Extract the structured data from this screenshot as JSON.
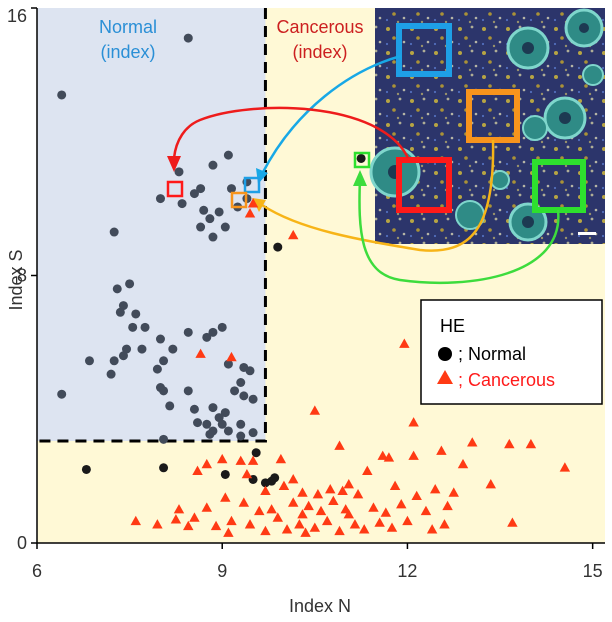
{
  "chart_data": {
    "type": "scatter",
    "xlabel": "Index N",
    "ylabel": "Index S",
    "xlim": [
      6,
      15.2
    ],
    "ylim": [
      0,
      16
    ],
    "xticks": [
      6,
      9,
      12,
      15
    ],
    "yticks": [
      0,
      8,
      16
    ],
    "region_labels": {
      "normal": [
        "Normal",
        "(index)"
      ],
      "cancerous": [
        "Cancerous",
        "(index)"
      ]
    },
    "thresholds": {
      "index_n": 9.7,
      "index_s": 3.05
    },
    "legend": {
      "title": "HE",
      "normal_label": "; Normal",
      "cancerous_label": "; Cancerous"
    },
    "colors": {
      "normal_region": "#dde4f1",
      "cancerous_region": "#fff9d6",
      "normal_point": "#3c3c3c",
      "cancerous_point": "#ff3a14",
      "normal_text": "#2a8fd6",
      "cancerous_text": "#cc2020",
      "box_red": "#ff1a1a",
      "box_blue": "#1e9fe6",
      "box_orange": "#f7941d",
      "box_green": "#2ee02e",
      "arrow_red": "#ee1c1c",
      "arrow_blue": "#18a8e6",
      "arrow_orange": "#f7b417",
      "arrow_green": "#3ddc3d"
    },
    "series": [
      {
        "name": "Normal",
        "marker": "circle",
        "points": [
          [
            8.45,
            15.1
          ],
          [
            6.4,
            13.4
          ],
          [
            9.1,
            11.6
          ],
          [
            8.85,
            11.3
          ],
          [
            8.3,
            11.1
          ],
          [
            9.4,
            10.8
          ],
          [
            8.65,
            10.6
          ],
          [
            9.15,
            10.6
          ],
          [
            8.55,
            10.45
          ],
          [
            8.0,
            10.3
          ],
          [
            8.35,
            10.15
          ],
          [
            9.25,
            10.05
          ],
          [
            8.7,
            9.95
          ],
          [
            8.95,
            9.9
          ],
          [
            8.8,
            9.7
          ],
          [
            8.65,
            9.45
          ],
          [
            9.05,
            9.45
          ],
          [
            7.25,
            9.3
          ],
          [
            8.85,
            9.15
          ],
          [
            9.9,
            8.85
          ],
          [
            7.3,
            7.6
          ],
          [
            7.5,
            7.75
          ],
          [
            7.4,
            7.1
          ],
          [
            7.35,
            6.9
          ],
          [
            7.6,
            6.85
          ],
          [
            7.55,
            6.45
          ],
          [
            7.75,
            6.45
          ],
          [
            7.7,
            5.8
          ],
          [
            8.0,
            6.1
          ],
          [
            8.45,
            6.3
          ],
          [
            9.0,
            6.45
          ],
          [
            8.85,
            6.3
          ],
          [
            8.75,
            6.15
          ],
          [
            7.45,
            5.8
          ],
          [
            8.2,
            5.8
          ],
          [
            8.05,
            5.45
          ],
          [
            7.95,
            5.2
          ],
          [
            9.1,
            5.35
          ],
          [
            9.35,
            5.25
          ],
          [
            9.45,
            5.15
          ],
          [
            6.85,
            5.45
          ],
          [
            7.25,
            5.45
          ],
          [
            7.4,
            5.6
          ],
          [
            7.2,
            5.05
          ],
          [
            9.3,
            4.8
          ],
          [
            9.2,
            4.55
          ],
          [
            8.0,
            4.65
          ],
          [
            8.05,
            4.55
          ],
          [
            8.45,
            4.55
          ],
          [
            6.4,
            4.45
          ],
          [
            9.35,
            4.4
          ],
          [
            9.5,
            4.3
          ],
          [
            8.15,
            4.1
          ],
          [
            8.85,
            4.05
          ],
          [
            8.55,
            4.0
          ],
          [
            9.05,
            3.9
          ],
          [
            8.95,
            3.75
          ],
          [
            8.75,
            3.55
          ],
          [
            9.0,
            3.55
          ],
          [
            8.6,
            3.6
          ],
          [
            9.3,
            3.55
          ],
          [
            8.85,
            3.35
          ],
          [
            8.8,
            3.25
          ],
          [
            9.1,
            3.35
          ],
          [
            8.05,
            3.1
          ],
          [
            9.5,
            3.3
          ],
          [
            9.3,
            3.2
          ],
          [
            9.55,
            2.7
          ],
          [
            6.8,
            2.2
          ],
          [
            8.05,
            2.25
          ],
          [
            9.05,
            2.05
          ],
          [
            9.5,
            1.9
          ],
          [
            9.7,
            1.8
          ],
          [
            9.85,
            1.95
          ],
          [
            9.8,
            1.85
          ],
          [
            11.25,
            11.5
          ],
          [
            9.4,
            10.3
          ]
        ]
      },
      {
        "name": "Cancerous",
        "marker": "triangle",
        "points": [
          [
            10.15,
            9.2
          ],
          [
            11.95,
            5.95
          ],
          [
            8.65,
            5.65
          ],
          [
            9.15,
            5.55
          ],
          [
            10.5,
            3.95
          ],
          [
            12.1,
            3.6
          ],
          [
            10.9,
            2.9
          ],
          [
            11.6,
            2.6
          ],
          [
            11.7,
            2.55
          ],
          [
            12.1,
            2.6
          ],
          [
            13.05,
            3.0
          ],
          [
            13.65,
            2.95
          ],
          [
            14.0,
            2.95
          ],
          [
            12.55,
            2.75
          ],
          [
            12.9,
            2.35
          ],
          [
            14.55,
            2.25
          ],
          [
            9.0,
            2.5
          ],
          [
            8.75,
            2.35
          ],
          [
            9.3,
            2.45
          ],
          [
            9.5,
            2.45
          ],
          [
            9.95,
            2.5
          ],
          [
            8.6,
            2.15
          ],
          [
            9.4,
            2.05
          ],
          [
            10.15,
            1.9
          ],
          [
            11.35,
            2.15
          ],
          [
            11.05,
            1.75
          ],
          [
            11.8,
            1.7
          ],
          [
            12.45,
            1.6
          ],
          [
            13.35,
            1.75
          ],
          [
            12.15,
            1.4
          ],
          [
            12.75,
            1.5
          ],
          [
            11.2,
            1.45
          ],
          [
            10.75,
            1.6
          ],
          [
            10.55,
            1.45
          ],
          [
            10.3,
            1.5
          ],
          [
            9.7,
            1.55
          ],
          [
            9.05,
            1.35
          ],
          [
            9.35,
            1.2
          ],
          [
            8.75,
            1.05
          ],
          [
            9.6,
            0.95
          ],
          [
            10.15,
            1.2
          ],
          [
            10.4,
            1.1
          ],
          [
            10.6,
            0.95
          ],
          [
            11.0,
            1.0
          ],
          [
            11.45,
            1.05
          ],
          [
            11.9,
            1.15
          ],
          [
            12.3,
            0.95
          ],
          [
            12.65,
            1.1
          ],
          [
            10.3,
            0.85
          ],
          [
            9.9,
            0.75
          ],
          [
            9.15,
            0.65
          ],
          [
            8.55,
            0.75
          ],
          [
            8.25,
            0.7
          ],
          [
            7.6,
            0.65
          ],
          [
            7.95,
            0.55
          ],
          [
            8.45,
            0.5
          ],
          [
            9.45,
            0.55
          ],
          [
            10.25,
            0.55
          ],
          [
            10.7,
            0.65
          ],
          [
            11.15,
            0.55
          ],
          [
            11.55,
            0.6
          ],
          [
            12.0,
            0.65
          ],
          [
            12.6,
            0.55
          ],
          [
            13.7,
            0.6
          ],
          [
            10.05,
            0.4
          ],
          [
            10.5,
            0.45
          ],
          [
            11.3,
            0.4
          ],
          [
            11.75,
            0.45
          ],
          [
            10.9,
            0.35
          ],
          [
            10.35,
            0.3
          ],
          [
            9.7,
            0.35
          ],
          [
            9.1,
            0.3
          ],
          [
            8.9,
            0.5
          ],
          [
            11.65,
            0.9
          ],
          [
            10.8,
            1.25
          ],
          [
            9.8,
            1.0
          ],
          [
            10.95,
            1.55
          ],
          [
            12.4,
            0.4
          ],
          [
            11.05,
            0.85
          ],
          [
            8.3,
            1.0
          ],
          [
            10.0,
            1.7
          ],
          [
            9.45,
            9.85
          ],
          [
            9.5,
            10.15
          ]
        ]
      }
    ]
  }
}
